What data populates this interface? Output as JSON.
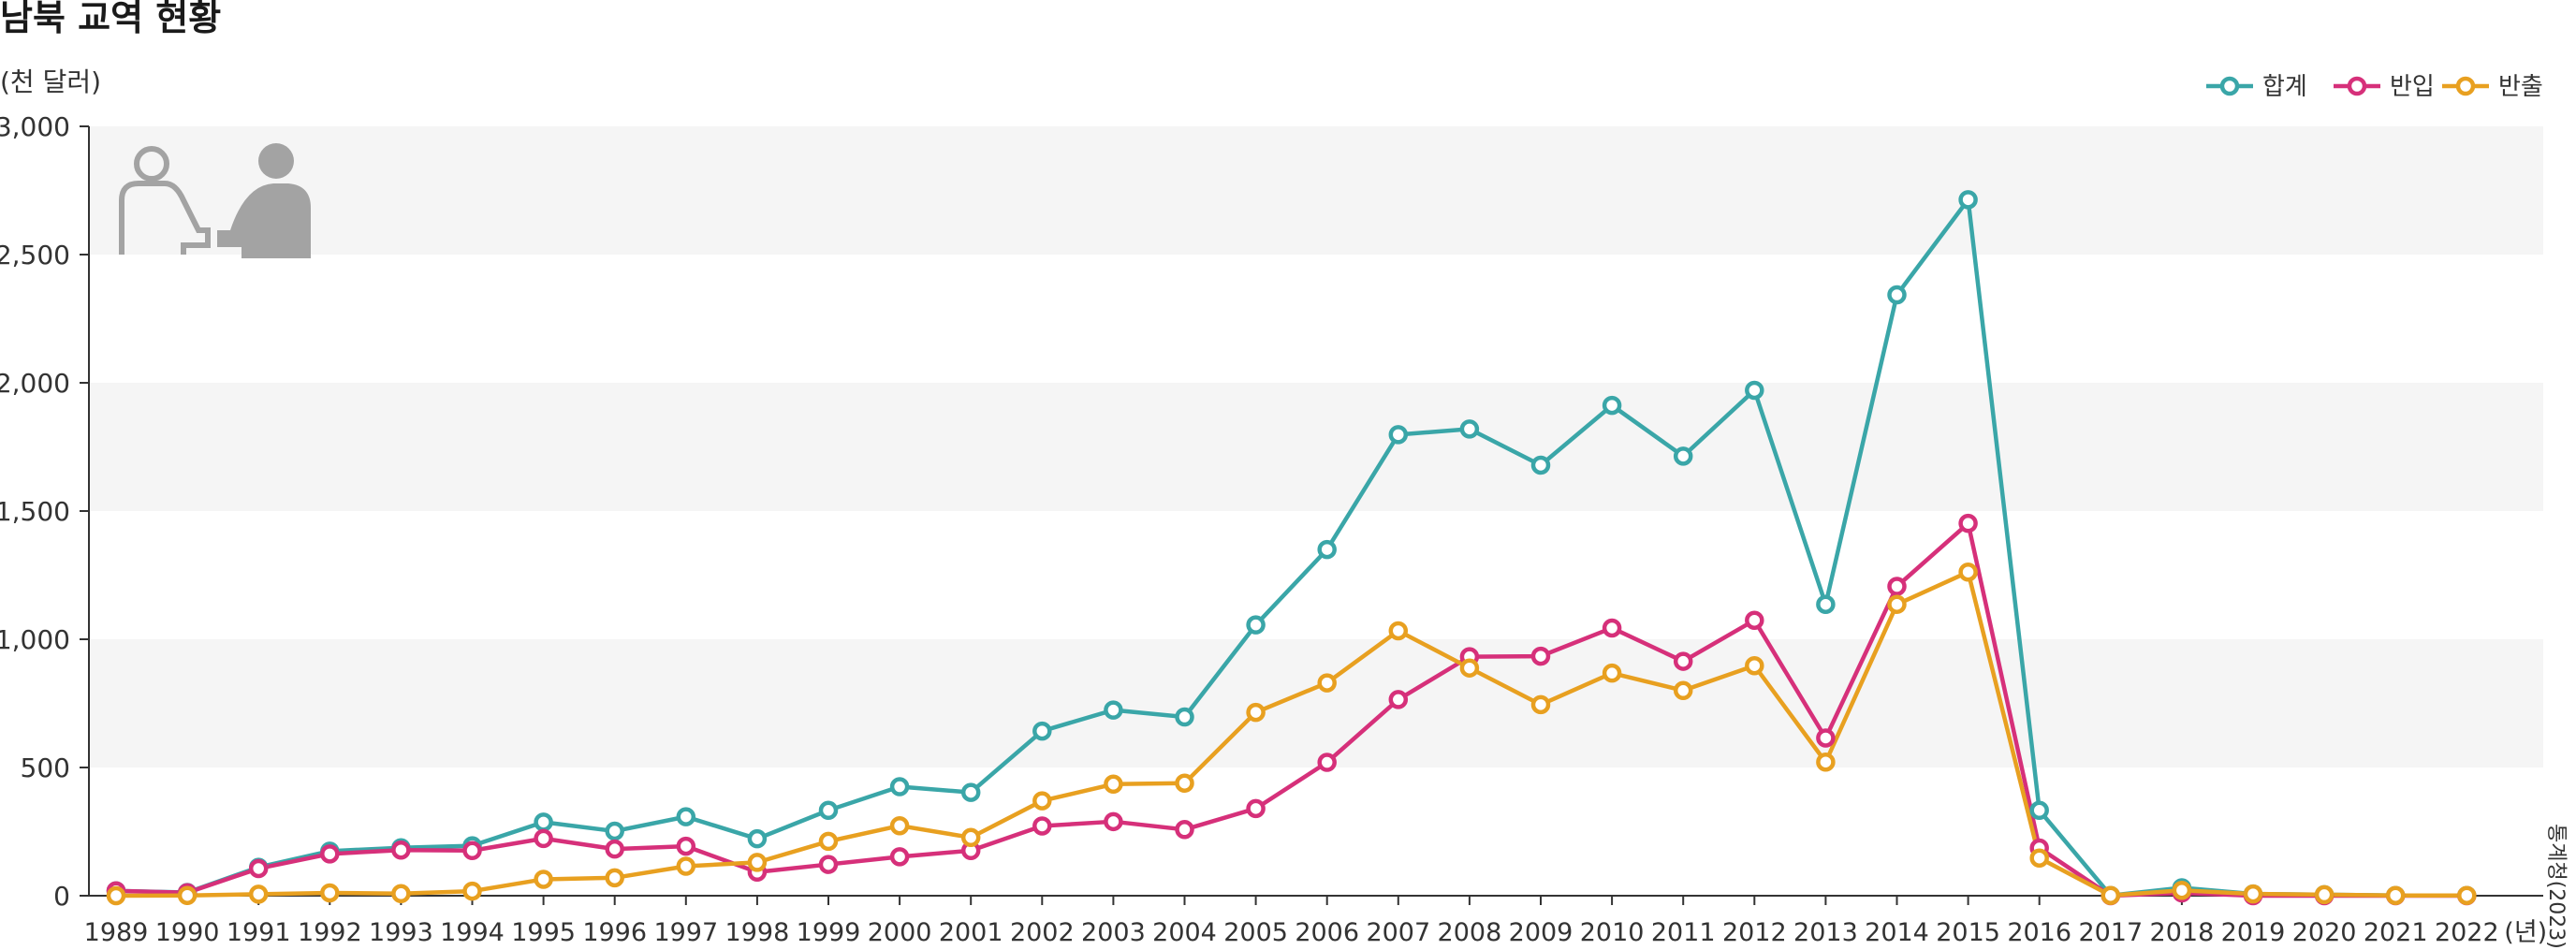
{
  "title": "남북 교역 현황",
  "unit_label": "(천 달러)",
  "source": "통계청(2023)",
  "colors": {
    "total": "#3aa6a8",
    "import": "#d6307a",
    "export": "#e8a020",
    "band": "#f5f5f5",
    "axis": "#333333",
    "icon": "#a3a3a3"
  },
  "icons": [
    "person-outline-icon",
    "person-filled-icon"
  ],
  "chart_data": {
    "type": "line",
    "title": "남북 교역 현황",
    "ylabel": "(천 달러)",
    "xlabel": "",
    "x_suffix": "(년)",
    "ylim": [
      0,
      3000
    ],
    "yticks": [
      0,
      500,
      1000,
      1500,
      2000,
      2500,
      3000
    ],
    "ytick_labels": [
      "0",
      "500",
      "1,000",
      "1,500",
      "2,000",
      "2,500",
      "3,000"
    ],
    "legend_position": "top-right",
    "grid": "alternating horizontal bands",
    "x": [
      "1989",
      "1990",
      "1991",
      "1992",
      "1993",
      "1994",
      "1995",
      "1996",
      "1997",
      "1998",
      "1999",
      "2000",
      "2001",
      "2002",
      "2003",
      "2004",
      "2005",
      "2006",
      "2007",
      "2008",
      "2009",
      "2010",
      "2011",
      "2012",
      "2013",
      "2014",
      "2015",
      "2016",
      "2017",
      "2018",
      "2019",
      "2020",
      "2021",
      "2022"
    ],
    "series": [
      {
        "name": "합계",
        "color_key": "total",
        "values": [
          19,
          13,
          111,
          174,
          187,
          195,
          287,
          252,
          308,
          222,
          333,
          425,
          403,
          642,
          724,
          697,
          1056,
          1350,
          1798,
          1820,
          1679,
          1912,
          1714,
          1971,
          1136,
          2343,
          2714,
          333,
          1,
          31,
          7,
          4,
          1,
          1
        ]
      },
      {
        "name": "반입",
        "color_key": "import",
        "values": [
          19,
          12,
          106,
          163,
          178,
          176,
          223,
          182,
          193,
          92,
          122,
          152,
          176,
          272,
          289,
          258,
          340,
          520,
          765,
          932,
          934,
          1044,
          914,
          1074,
          615,
          1206,
          1452,
          186,
          0,
          11,
          0,
          0,
          0,
          0
        ]
      },
      {
        "name": "반출",
        "color_key": "export",
        "values": [
          0,
          1,
          6,
          11,
          8,
          18,
          64,
          70,
          115,
          130,
          212,
          273,
          227,
          370,
          435,
          439,
          715,
          830,
          1033,
          888,
          745,
          868,
          800,
          897,
          521,
          1136,
          1262,
          147,
          1,
          21,
          7,
          4,
          1,
          1
        ]
      }
    ]
  }
}
